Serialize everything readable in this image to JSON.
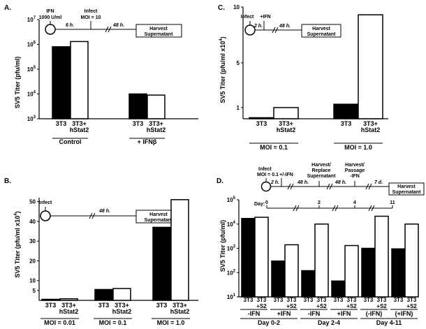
{
  "panels": {
    "A": {
      "letter": "A.",
      "ylabel": "SV5 Titer (pfu/ml)",
      "timeline": {
        "ifn": "IFN",
        "ifn_dose": "1000 U/ml",
        "infect": "Infect",
        "moi": "MOI = 10",
        "t1": "6 h.",
        "t2": "48 h.",
        "harvest": "Harvest",
        "supernatant": "Supernatant"
      }
    },
    "B": {
      "letter": "B.",
      "ylabel": "SV5 Titer (pfu/ml x10",
      "ylabel_sup": "4",
      "ylabel_end": ")",
      "timeline": {
        "infect": "Infect",
        "t1": "48 h.",
        "harvest": "Harvest",
        "supernatant": "Supernatant"
      }
    },
    "C": {
      "letter": "C.",
      "ylabel": "SV5 Titer (pfu/ml x10",
      "ylabel_sup": "4",
      "ylabel_end": ")",
      "timeline": {
        "infect": "Infect",
        "ifn": "+IFN",
        "t1": "2 h.",
        "t2": "48 h.",
        "harvest": "Harvest",
        "supernatant": "Supernatant"
      }
    },
    "D": {
      "letter": "D.",
      "ylabel": "SV5 Titer (pfu/ml)",
      "timeline": {
        "infect": "Infect",
        "moi": "MOI = 0.1",
        "ifn": "+/-IFN",
        "t1": "2 h.",
        "t2": "48 h.",
        "t3": "48 h.",
        "t4": "7 d.",
        "harvest1": "Harvest/",
        "replace1": "Replace",
        "super1": "Supernatant",
        "harvest2": "Harvest/",
        "passage2": "Passage",
        "ifn2": "-IFN",
        "harvest": "Harvest",
        "supernatant": "Supernatant",
        "day_label": "Day:",
        "days": [
          "0",
          "2",
          "4",
          "11"
        ]
      }
    }
  },
  "chart_data": [
    {
      "panel": "A",
      "type": "bar",
      "yscale": "log",
      "ylim": [
        1000,
        10000000
      ],
      "yticks": [
        {
          "b": "10",
          "e": "3"
        },
        {
          "b": "10",
          "e": "4"
        },
        {
          "b": "10",
          "e": "5"
        },
        {
          "b": "10",
          "e": "6"
        },
        {
          "b": "10",
          "e": "7"
        }
      ],
      "categories": [
        "3T3",
        "3T3+ hStat2",
        "3T3",
        "3T3+ hStat2"
      ],
      "cat_lines": [
        [
          "3T3"
        ],
        [
          "3T3+",
          "hStat2"
        ],
        [
          "3T3"
        ],
        [
          "3T3+",
          "hStat2"
        ]
      ],
      "values": [
        800000,
        1300000,
        10000,
        9000
      ],
      "fills": [
        "#000000",
        "#ffffff",
        "#000000",
        "#ffffff"
      ],
      "groups": [
        "Control",
        "+ IFNβ"
      ]
    },
    {
      "panel": "B",
      "type": "bar",
      "ylim": [
        0,
        52
      ],
      "yticks": [
        "5",
        "10",
        "20",
        "30",
        "40",
        "50"
      ],
      "categories": [
        "3T3",
        "3T3+ hStat2",
        "3T3",
        "3T3+ hStat2",
        "3T3",
        "3T3+ hStat2"
      ],
      "cat_lines": [
        [
          "3T3"
        ],
        [
          "3T3+",
          "hStat2"
        ],
        [
          "3T3"
        ],
        [
          "3T3+",
          "hStat2"
        ],
        [
          "3T3"
        ],
        [
          "3T3+",
          "hStat2"
        ]
      ],
      "values": [
        0.4,
        0.8,
        5.5,
        6,
        37,
        51
      ],
      "fills": [
        "#000000",
        "#ffffff",
        "#000000",
        "#ffffff",
        "#000000",
        "#ffffff"
      ],
      "groups": [
        "MOI = 0.01",
        "MOI = 0.1",
        "MOI = 1.0"
      ]
    },
    {
      "panel": "C",
      "type": "bar",
      "ylim": [
        0,
        10
      ],
      "yticks": [
        "1",
        "5",
        "10"
      ],
      "categories": [
        "3T3",
        "3T3+ hStat2",
        "3T3",
        "3T3+ hStat2"
      ],
      "cat_lines": [
        [
          "3T3"
        ],
        [
          "3T3+",
          "hStat2"
        ],
        [
          "3T3"
        ],
        [
          "3T3+",
          "hStat2"
        ]
      ],
      "values": [
        0.05,
        1,
        1.3,
        9.3
      ],
      "fills": [
        "#000000",
        "#ffffff",
        "#000000",
        "#ffffff"
      ],
      "groups": [
        "MOI = 0.1",
        "MOI = 1.0"
      ]
    },
    {
      "panel": "D",
      "type": "bar",
      "yscale": "log",
      "ylim": [
        10,
        100000
      ],
      "yticks": [
        {
          "b": "10",
          "e": "1"
        },
        {
          "b": "10",
          "e": "2"
        },
        {
          "b": "10",
          "e": "3"
        },
        {
          "b": "10",
          "e": "4"
        },
        {
          "b": "10",
          "e": "5"
        }
      ],
      "categories": [
        "3T3",
        "3T3 +S2",
        "3T3",
        "3T3 +S2",
        "3T3",
        "3T3 +S2",
        "3T3",
        "3T3 +S2",
        "3T3",
        "3T3 +S2",
        "3T3",
        "3T3 +S2"
      ],
      "cat_lines": [
        [
          "3T3"
        ],
        [
          "3T3",
          "+S2"
        ],
        [
          "3T3"
        ],
        [
          "3T3",
          "+S2"
        ],
        [
          "3T3"
        ],
        [
          "3T3",
          "+S2"
        ],
        [
          "3T3"
        ],
        [
          "3T3",
          "+S2"
        ],
        [
          "3T3"
        ],
        [
          "3T3",
          "+S2"
        ],
        [
          "3T3"
        ],
        [
          "3T3",
          "+S2"
        ]
      ],
      "values": [
        17000,
        19000,
        300,
        1400,
        120,
        10000,
        45,
        1300,
        1000,
        21000,
        950,
        10000
      ],
      "fills": [
        "#000000",
        "#ffffff",
        "#000000",
        "#ffffff",
        "#000000",
        "#ffffff",
        "#000000",
        "#ffffff",
        "#000000",
        "#ffffff",
        "#000000",
        "#ffffff"
      ],
      "subgroups": [
        "-IFN",
        "+IFN",
        "-IFN",
        "+IFN",
        "(-IFN)",
        "(+IFN)"
      ],
      "groups": [
        "Day 0-2",
        "Day 2-4",
        "Day 4-11"
      ]
    }
  ]
}
